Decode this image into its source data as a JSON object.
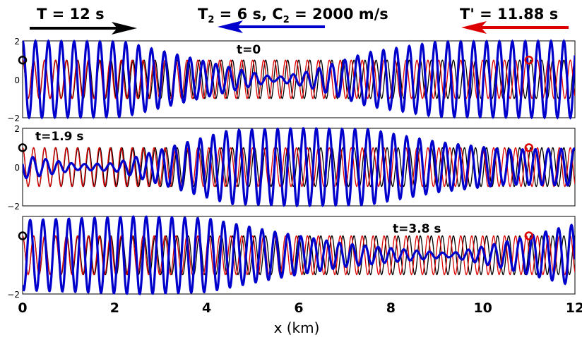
{
  "figure": {
    "header": {
      "left": {
        "text": "T = 12 s",
        "color": "#000000",
        "direction": "right"
      },
      "middle": {
        "text_parts": [
          "T",
          "2",
          " = 6 s, C",
          "2",
          " = 2000 m/s"
        ],
        "color": "#0000cc",
        "direction": "left"
      },
      "right": {
        "text": "T' = 11.88 s",
        "color": "#dd0000",
        "direction": "left"
      }
    },
    "xlabel": "x (km)",
    "xticks": [
      "0",
      "2",
      "4",
      "6",
      "8",
      "10",
      "12"
    ]
  },
  "chart_data": [
    {
      "type": "line",
      "annotation": "t=0",
      "xlim": [
        0,
        12
      ],
      "ylim": [
        -2,
        2
      ],
      "yticks": [
        "2",
        "0",
        "−2"
      ],
      "series": [
        {
          "color": "#000000",
          "period_km": 0.24,
          "amplitude": 1.0
        },
        {
          "color": "#dd0000",
          "period_km": 0.238,
          "amplitude": 1.0
        },
        {
          "color": "#0000cc",
          "envelope": [
            [
              0,
              2.0
            ],
            [
              2.2,
              1.95
            ],
            [
              3.5,
              1.2
            ],
            [
              5.0,
              0.35
            ],
            [
              5.5,
              0.1
            ],
            [
              6.2,
              0.4
            ],
            [
              7.5,
              1.4
            ],
            [
              9.0,
              1.95
            ],
            [
              12,
              2.0
            ]
          ]
        }
      ],
      "markers": [
        {
          "x": 0.0,
          "y": 1.0,
          "color": "#000000"
        },
        {
          "x": 11.0,
          "y": 1.0,
          "color": "#dd0000"
        }
      ]
    },
    {
      "type": "line",
      "annotation": "t=1.9 s",
      "xlim": [
        0,
        12
      ],
      "ylim": [
        -2,
        2
      ],
      "yticks": [
        "2",
        "0",
        "−2"
      ],
      "series": [
        {
          "color": "#000000",
          "period_km": 0.24,
          "amplitude": 1.0
        },
        {
          "color": "#dd0000",
          "period_km": 0.238,
          "amplitude": 1.0
        },
        {
          "color": "#0000cc",
          "envelope": [
            [
              0,
              0.6
            ],
            [
              1.2,
              0.15
            ],
            [
              2.0,
              0.2
            ],
            [
              3.0,
              0.9
            ],
            [
              4.5,
              1.9
            ],
            [
              6.0,
              2.0
            ],
            [
              7.5,
              1.95
            ],
            [
              9.0,
              1.3
            ],
            [
              10.5,
              0.9
            ],
            [
              12,
              0.95
            ]
          ]
        }
      ],
      "markers": [
        {
          "x": 0.0,
          "y": 1.0,
          "color": "#000000"
        },
        {
          "x": 11.0,
          "y": 1.0,
          "color": "#dd0000"
        }
      ]
    },
    {
      "type": "line",
      "annotation": "t=3.8 s",
      "xlim": [
        0,
        12
      ],
      "ylim": [
        -2,
        2
      ],
      "yticks": [
        "−2"
      ],
      "series": [
        {
          "color": "#000000",
          "period_km": 0.24,
          "amplitude": 1.0
        },
        {
          "color": "#dd0000",
          "period_km": 0.238,
          "amplitude": 1.0
        },
        {
          "color": "#0000cc",
          "envelope": [
            [
              0,
              1.8
            ],
            [
              2.5,
              2.0
            ],
            [
              4.0,
              1.9
            ],
            [
              5.5,
              1.2
            ],
            [
              7.0,
              0.6
            ],
            [
              8.5,
              0.25
            ],
            [
              9.3,
              0.1
            ],
            [
              10.5,
              0.7
            ],
            [
              12,
              1.6
            ]
          ]
        }
      ],
      "markers": [
        {
          "x": 0.0,
          "y": 1.0,
          "color": "#000000"
        },
        {
          "x": 11.0,
          "y": 1.0,
          "color": "#dd0000"
        }
      ]
    }
  ]
}
